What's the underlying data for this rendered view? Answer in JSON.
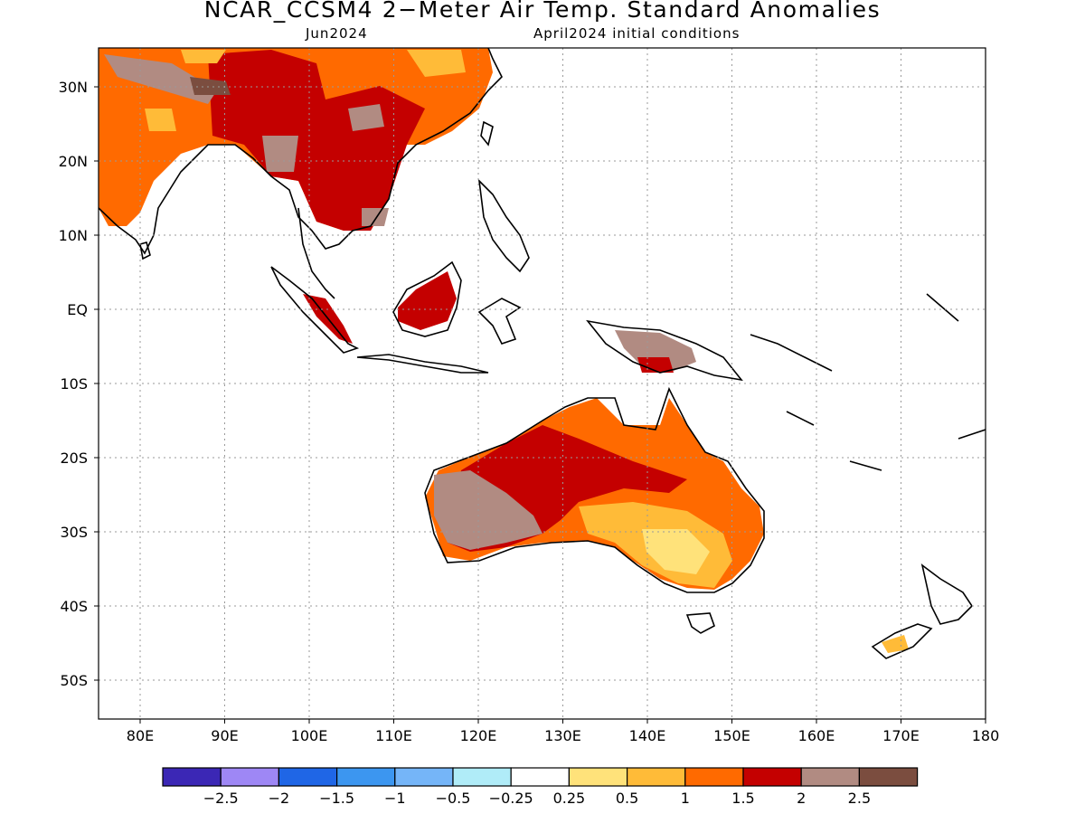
{
  "title": "NCAR_CCSM4 2−Meter Air Temp. Standard Anomalies",
  "subtitle_left": "Jun2024",
  "subtitle_right": "April2024 initial conditions",
  "lon_labels": [
    "80E",
    "90E",
    "100E",
    "110E",
    "120E",
    "130E",
    "140E",
    "150E",
    "160E",
    "170E",
    "180"
  ],
  "lat_labels": [
    "30N",
    "20N",
    "10N",
    "EQ",
    "10S",
    "20S",
    "30S",
    "40S",
    "50S"
  ],
  "colorbar": {
    "colors": [
      "#3b27b5",
      "#9e87f5",
      "#1f66e6",
      "#3c96f0",
      "#75b5f8",
      "#b0ecf8",
      "#ffffff",
      "#ffe27a",
      "#ffbb38",
      "#ff6a00",
      "#c40000",
      "#b18b82",
      "#7b4d3f"
    ],
    "labels": [
      "−2.5",
      "−2",
      "−1.5",
      "−1",
      "−0.5",
      "−0.25",
      "0.25",
      "0.5",
      "1",
      "1.5",
      "2",
      "2.5"
    ]
  }
}
